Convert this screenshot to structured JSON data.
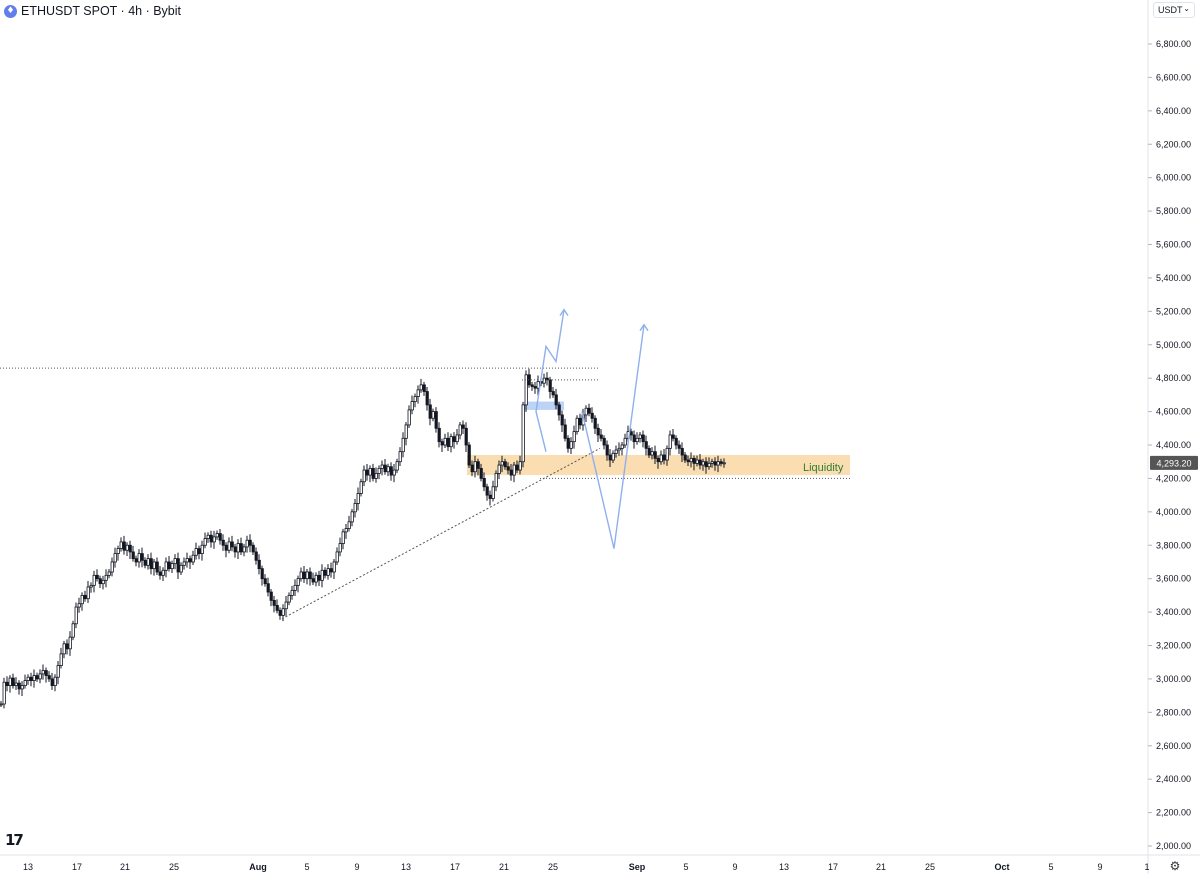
{
  "header": {
    "symbol_line": "ETHUSDT SPOT · 4h · Bybit",
    "coin_icon": "ethereum-icon"
  },
  "currency_select": {
    "value": "USDT",
    "icon": "chevron-down-icon"
  },
  "price_axis": {
    "labels": [
      "6,800.00",
      "6,600.00",
      "6,400.00",
      "6,200.00",
      "6,000.00",
      "5,800.00",
      "5,600.00",
      "5,400.00",
      "5,200.00",
      "5,000.00",
      "4,800.00",
      "4,600.00",
      "4,400.00",
      "4,200.00",
      "4,000.00",
      "3,800.00",
      "3,600.00",
      "3,400.00",
      "3,200.00",
      "3,000.00",
      "2,800.00",
      "2,600.00",
      "2,400.00",
      "2,200.00",
      "2,000.00"
    ],
    "current_price": "4,293.20",
    "current_price_color": "#555555"
  },
  "time_axis": {
    "labels": [
      "13",
      "17",
      "21",
      "25",
      "Aug",
      "5",
      "9",
      "13",
      "17",
      "21",
      "25",
      "Sep",
      "5",
      "9",
      "13",
      "17",
      "21",
      "25",
      "Oct",
      "5",
      "9",
      "1"
    ],
    "bold_labels": [
      "Aug",
      "Sep",
      "Oct"
    ]
  },
  "annotation": {
    "liquidity_label": "Liquidity",
    "liquidity_color": "#2e7d32",
    "zone_color": "#f9d9a9"
  },
  "settings_icon": "gear-icon",
  "logo": "tradingview-logo",
  "chart_data": {
    "type": "candlestick",
    "title": "ETHUSDT SPOT · 4h · Bybit",
    "ylim": [
      1950,
      6950
    ],
    "current_price": 4293.2,
    "close_path": [
      [
        0,
        2850
      ],
      [
        3,
        2980
      ],
      [
        6,
        2960
      ],
      [
        9,
        3005
      ],
      [
        12,
        2960
      ],
      [
        15,
        2975
      ],
      [
        18,
        2940
      ],
      [
        21,
        2960
      ],
      [
        24,
        2990
      ],
      [
        27,
        3010
      ],
      [
        30,
        2990
      ],
      [
        33,
        3020
      ],
      [
        36,
        3000
      ],
      [
        39,
        3030
      ],
      [
        42,
        3050
      ],
      [
        45,
        3020
      ],
      [
        48,
        3000
      ],
      [
        51,
        2960
      ],
      [
        54,
        3010
      ],
      [
        57,
        3080
      ],
      [
        60,
        3150
      ],
      [
        63,
        3210
      ],
      [
        66,
        3180
      ],
      [
        69,
        3250
      ],
      [
        72,
        3330
      ],
      [
        75,
        3430
      ],
      [
        78,
        3450
      ],
      [
        81,
        3500
      ],
      [
        84,
        3480
      ],
      [
        87,
        3550
      ],
      [
        90,
        3560
      ],
      [
        93,
        3620
      ],
      [
        96,
        3600
      ],
      [
        99,
        3570
      ],
      [
        102,
        3590
      ],
      [
        105,
        3620
      ],
      [
        108,
        3640
      ],
      [
        111,
        3700
      ],
      [
        114,
        3750
      ],
      [
        117,
        3780
      ],
      [
        120,
        3820
      ],
      [
        123,
        3770
      ],
      [
        126,
        3800
      ],
      [
        129,
        3760
      ],
      [
        132,
        3720
      ],
      [
        135,
        3700
      ],
      [
        138,
        3750
      ],
      [
        141,
        3710
      ],
      [
        144,
        3680
      ],
      [
        147,
        3720
      ],
      [
        150,
        3660
      ],
      [
        153,
        3700
      ],
      [
        156,
        3640
      ],
      [
        159,
        3620
      ],
      [
        162,
        3650
      ],
      [
        165,
        3700
      ],
      [
        168,
        3660
      ],
      [
        171,
        3690
      ],
      [
        174,
        3720
      ],
      [
        177,
        3640
      ],
      [
        180,
        3680
      ],
      [
        183,
        3700
      ],
      [
        186,
        3720
      ],
      [
        189,
        3700
      ],
      [
        192,
        3740
      ],
      [
        195,
        3780
      ],
      [
        198,
        3750
      ],
      [
        201,
        3800
      ],
      [
        204,
        3840
      ],
      [
        207,
        3860
      ],
      [
        210,
        3820
      ],
      [
        213,
        3850
      ],
      [
        216,
        3870
      ],
      [
        219,
        3830
      ],
      [
        222,
        3800
      ],
      [
        225,
        3770
      ],
      [
        228,
        3820
      ],
      [
        231,
        3790
      ],
      [
        234,
        3760
      ],
      [
        237,
        3810
      ],
      [
        240,
        3760
      ],
      [
        243,
        3790
      ],
      [
        246,
        3830
      ],
      [
        249,
        3800
      ],
      [
        252,
        3760
      ],
      [
        255,
        3710
      ],
      [
        258,
        3660
      ],
      [
        261,
        3600
      ],
      [
        264,
        3570
      ],
      [
        267,
        3520
      ],
      [
        270,
        3470
      ],
      [
        273,
        3440
      ],
      [
        276,
        3410
      ],
      [
        279,
        3380
      ],
      [
        282,
        3420
      ],
      [
        285,
        3460
      ],
      [
        288,
        3500
      ],
      [
        291,
        3530
      ],
      [
        294,
        3560
      ],
      [
        297,
        3600
      ],
      [
        300,
        3640
      ],
      [
        303,
        3600
      ],
      [
        306,
        3640
      ],
      [
        309,
        3600
      ],
      [
        312,
        3580
      ],
      [
        315,
        3620
      ],
      [
        318,
        3590
      ],
      [
        321,
        3650
      ],
      [
        324,
        3620
      ],
      [
        327,
        3660
      ],
      [
        330,
        3640
      ],
      [
        333,
        3700
      ],
      [
        336,
        3760
      ],
      [
        339,
        3810
      ],
      [
        342,
        3880
      ],
      [
        345,
        3900
      ],
      [
        348,
        3940
      ],
      [
        351,
        4000
      ],
      [
        354,
        4050
      ],
      [
        357,
        4110
      ],
      [
        360,
        4180
      ],
      [
        363,
        4250
      ],
      [
        366,
        4220
      ],
      [
        369,
        4260
      ],
      [
        372,
        4200
      ],
      [
        375,
        4230
      ],
      [
        378,
        4260
      ],
      [
        381,
        4280
      ],
      [
        384,
        4240
      ],
      [
        387,
        4270
      ],
      [
        390,
        4220
      ],
      [
        393,
        4250
      ],
      [
        396,
        4300
      ],
      [
        399,
        4360
      ],
      [
        402,
        4440
      ],
      [
        405,
        4520
      ],
      [
        408,
        4610
      ],
      [
        411,
        4660
      ],
      [
        414,
        4690
      ],
      [
        417,
        4730
      ],
      [
        420,
        4760
      ],
      [
        423,
        4720
      ],
      [
        426,
        4640
      ],
      [
        429,
        4560
      ],
      [
        432,
        4600
      ],
      [
        435,
        4500
      ],
      [
        438,
        4420
      ],
      [
        441,
        4400
      ],
      [
        444,
        4440
      ],
      [
        447,
        4390
      ],
      [
        450,
        4450
      ],
      [
        453,
        4420
      ],
      [
        456,
        4460
      ],
      [
        459,
        4520
      ],
      [
        462,
        4500
      ],
      [
        465,
        4400
      ],
      [
        468,
        4280
      ],
      [
        471,
        4240
      ],
      [
        474,
        4300
      ],
      [
        477,
        4260
      ],
      [
        480,
        4200
      ],
      [
        483,
        4150
      ],
      [
        486,
        4100
      ],
      [
        489,
        4080
      ],
      [
        492,
        4150
      ],
      [
        495,
        4230
      ],
      [
        498,
        4280
      ],
      [
        501,
        4300
      ],
      [
        504,
        4270
      ],
      [
        507,
        4250
      ],
      [
        510,
        4220
      ],
      [
        513,
        4280
      ],
      [
        516,
        4250
      ],
      [
        519,
        4300
      ],
      [
        522,
        4640
      ],
      [
        525,
        4820
      ],
      [
        528,
        4760
      ],
      [
        531,
        4750
      ],
      [
        534,
        4740
      ],
      [
        537,
        4780
      ],
      [
        540,
        4770
      ],
      [
        543,
        4800
      ],
      [
        546,
        4790
      ],
      [
        549,
        4720
      ],
      [
        552,
        4700
      ],
      [
        555,
        4640
      ],
      [
        558,
        4580
      ],
      [
        561,
        4520
      ],
      [
        564,
        4440
      ],
      [
        567,
        4380
      ],
      [
        570,
        4420
      ],
      [
        573,
        4480
      ],
      [
        576,
        4560
      ],
      [
        579,
        4520
      ],
      [
        582,
        4580
      ],
      [
        585,
        4620
      ],
      [
        588,
        4590
      ],
      [
        591,
        4560
      ],
      [
        594,
        4500
      ],
      [
        597,
        4460
      ],
      [
        600,
        4440
      ],
      [
        603,
        4400
      ],
      [
        606,
        4340
      ],
      [
        609,
        4310
      ],
      [
        612,
        4350
      ],
      [
        615,
        4370
      ],
      [
        618,
        4380
      ],
      [
        621,
        4400
      ],
      [
        624,
        4440
      ],
      [
        627,
        4480
      ],
      [
        630,
        4460
      ],
      [
        633,
        4420
      ],
      [
        636,
        4440
      ],
      [
        639,
        4460
      ],
      [
        642,
        4420
      ],
      [
        645,
        4380
      ],
      [
        648,
        4340
      ],
      [
        651,
        4360
      ],
      [
        654,
        4320
      ],
      [
        657,
        4300
      ],
      [
        660,
        4340
      ],
      [
        663,
        4310
      ],
      [
        666,
        4380
      ],
      [
        669,
        4460
      ],
      [
        672,
        4440
      ],
      [
        675,
        4400
      ],
      [
        678,
        4380
      ],
      [
        681,
        4340
      ],
      [
        684,
        4310
      ],
      [
        687,
        4300
      ],
      [
        690,
        4320
      ],
      [
        693,
        4290
      ],
      [
        696,
        4310
      ],
      [
        699,
        4280
      ],
      [
        702,
        4300
      ],
      [
        705,
        4270
      ],
      [
        708,
        4290
      ],
      [
        711,
        4300
      ],
      [
        714,
        4280
      ],
      [
        717,
        4300
      ],
      [
        720,
        4290
      ],
      [
        723,
        4293.2
      ]
    ],
    "resistance_line": {
      "price": 4860
    },
    "range_high_line": {
      "price": 4790
    },
    "liquidity_zone": {
      "top": 4340,
      "bottom": 4220
    },
    "liquidity_low_line": {
      "price": 4200
    },
    "supply_zone": {
      "top": 4660,
      "bottom": 4610
    },
    "trendline": {
      "from_price": 3360,
      "to_price": 4380
    },
    "projection_1": [
      [
        4360
      ],
      [
        4600
      ],
      [
        4990
      ],
      [
        4900
      ],
      [
        5210
      ]
    ],
    "projection_2": [
      [
        4600
      ],
      [
        3780
      ],
      [
        5120
      ]
    ]
  }
}
